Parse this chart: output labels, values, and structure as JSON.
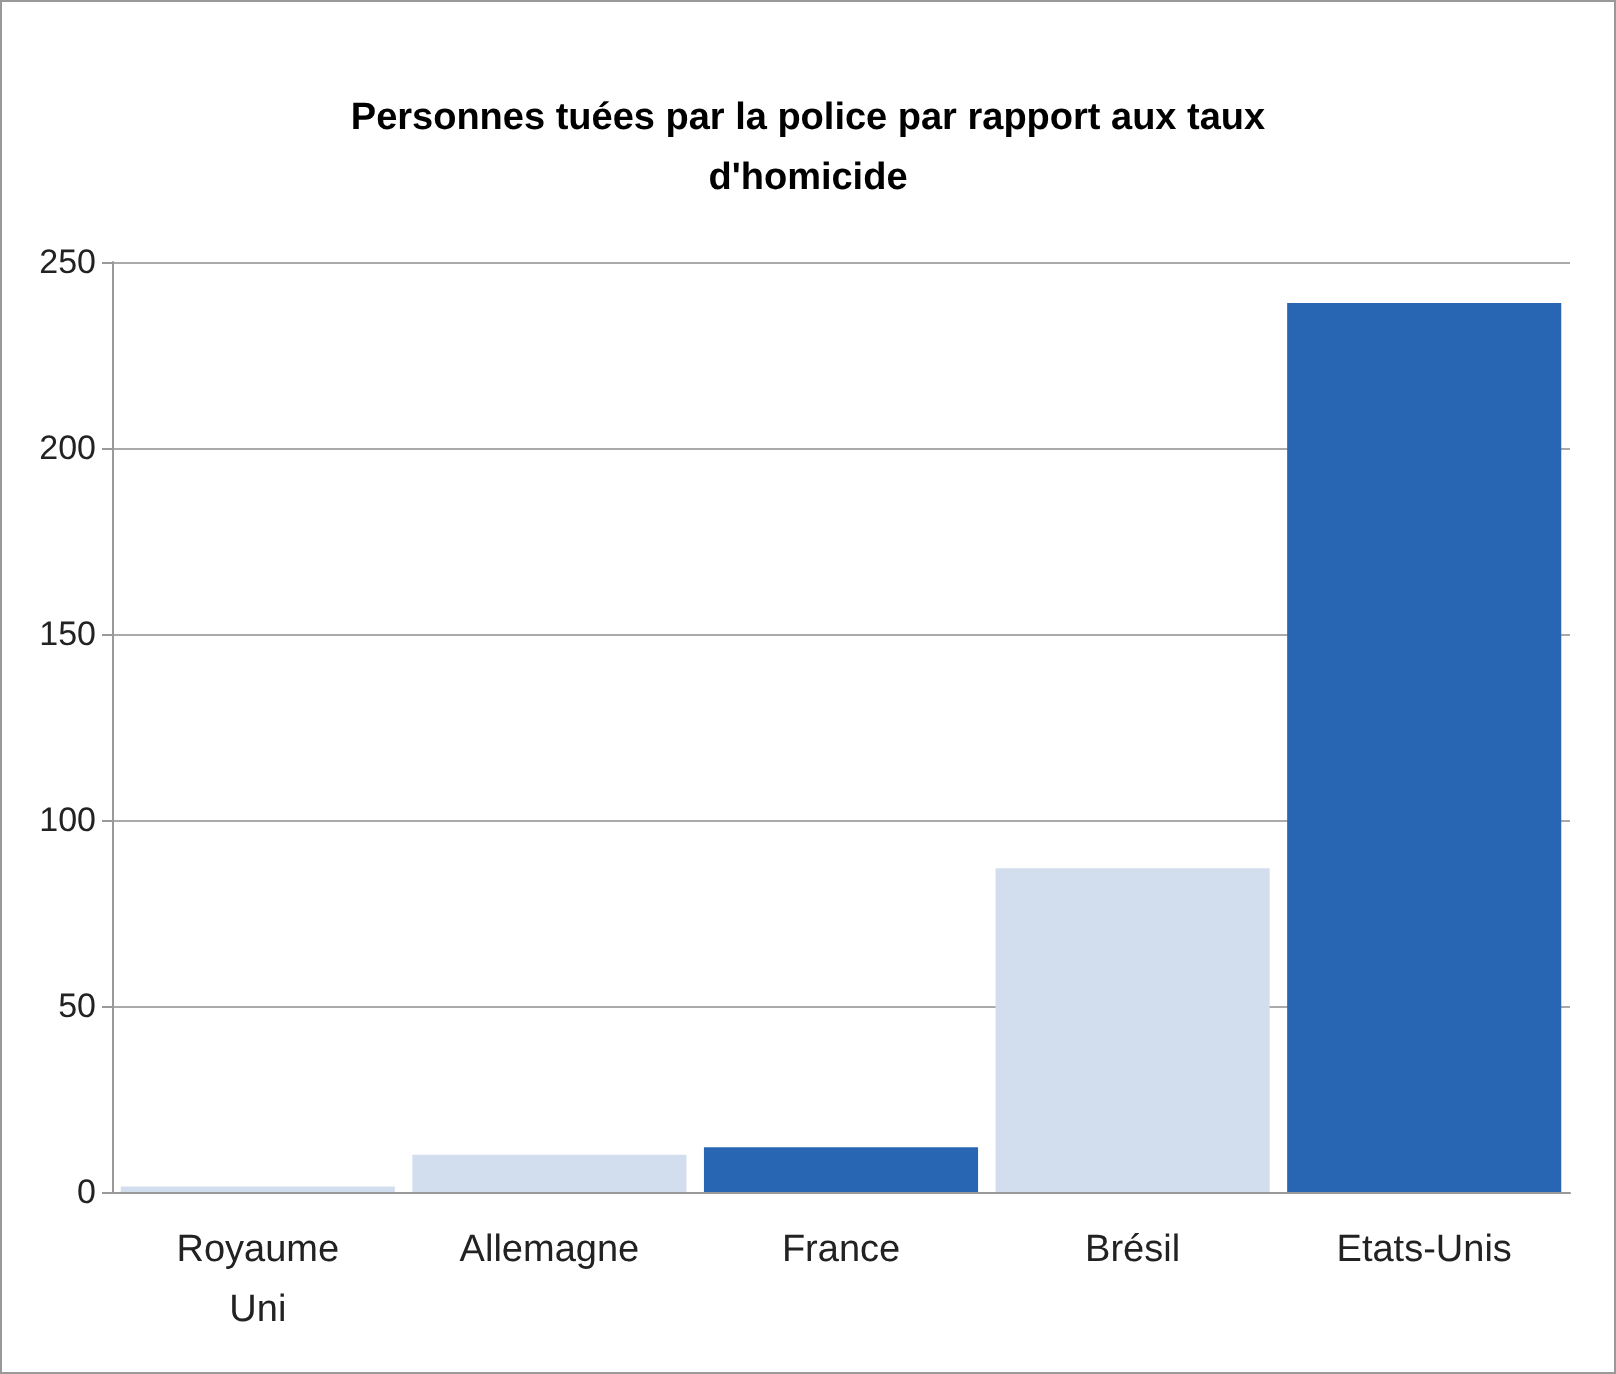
{
  "chart_data": {
    "type": "bar",
    "title": "Personnes tuées par la police par rapport aux taux\nd'homicide",
    "categories": [
      "Royaume\nUni",
      "Allemagne",
      "France",
      "Brésil",
      "Etats-Unis"
    ],
    "values": [
      1.5,
      10,
      12,
      87,
      239
    ],
    "colors": [
      "#d2deee",
      "#d2deee",
      "#2866b4",
      "#d2deee",
      "#2866b4"
    ],
    "ylim": [
      0,
      250
    ],
    "yticks": [
      0,
      50,
      100,
      150,
      200,
      250
    ],
    "grid": "y"
  }
}
